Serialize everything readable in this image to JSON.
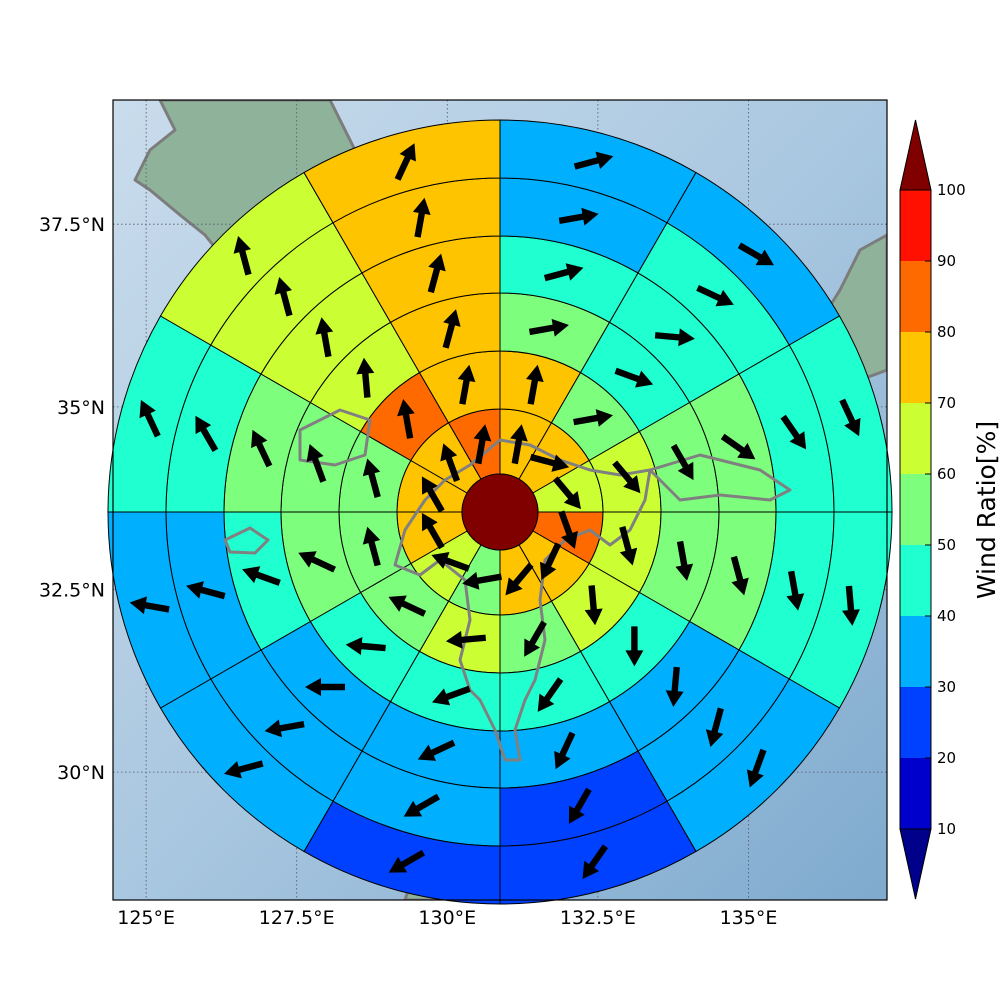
{
  "chart_data": {
    "type": "heatmap",
    "projection": "polar-sector map (typhoon-centered wind ratio)",
    "x_ticks": [
      "125°E",
      "127.5°E",
      "130°E",
      "132.5°E",
      "135°E"
    ],
    "x_tick_values": [
      125,
      127.5,
      130,
      132.5,
      135
    ],
    "y_ticks": [
      "30°N",
      "32.5°N",
      "35°N",
      "37.5°N"
    ],
    "y_tick_values": [
      30,
      32.5,
      35,
      37.5
    ],
    "lon_range": [
      124.45,
      137.3
    ],
    "lat_range": [
      28.25,
      39.2
    ],
    "grid": true,
    "center_value": 100,
    "sector_order": "clockwise from north, 12 sectors of 30°",
    "rings": [
      {
        "ring": 1,
        "values": [
          72,
          78,
          62,
          85,
          72,
          72,
          52,
          62,
          72,
          72,
          72,
          85
        ],
        "wind_dir_deg": [
          10,
          105,
          140,
          160,
          205,
          220,
          260,
          290,
          330,
          330,
          340,
          10
        ]
      },
      {
        "ring": 2,
        "values": [
          72,
          58,
          62,
          62,
          62,
          55,
          68,
          55,
          55,
          55,
          85,
          72
        ],
        "wind_dir_deg": [
          10,
          80,
          140,
          165,
          175,
          210,
          265,
          295,
          345,
          345,
          350,
          10
        ]
      },
      {
        "ring": 3,
        "values": [
          55,
          45,
          55,
          55,
          45,
          45,
          45,
          45,
          55,
          55,
          62,
          72
        ],
        "wind_dir_deg": [
          80,
          110,
          150,
          170,
          180,
          215,
          250,
          275,
          295,
          340,
          355,
          15
        ]
      },
      {
        "ring": 4,
        "values": [
          45,
          45,
          55,
          55,
          35,
          35,
          35,
          35,
          45,
          55,
          62,
          72
        ],
        "wind_dir_deg": [
          75,
          95,
          125,
          165,
          185,
          205,
          245,
          270,
          290,
          335,
          350,
          15
        ]
      },
      {
        "ring": 5,
        "values": [
          35,
          45,
          45,
          45,
          35,
          25,
          35,
          35,
          35,
          45,
          62,
          72
        ],
        "wind_dir_deg": [
          80,
          115,
          145,
          170,
          195,
          210,
          240,
          260,
          285,
          330,
          345,
          10
        ]
      },
      {
        "ring": 6,
        "values": [
          35,
          35,
          45,
          45,
          35,
          25,
          25,
          35,
          35,
          45,
          62,
          72
        ],
        "wind_dir_deg": [
          75,
          120,
          155,
          175,
          200,
          215,
          240,
          255,
          280,
          335,
          345,
          25
        ]
      }
    ],
    "colorbar": {
      "label": "Wind Ratio[%]",
      "ticks": [
        10,
        20,
        30,
        40,
        50,
        60,
        70,
        80,
        90,
        100
      ],
      "levels": [
        10,
        20,
        30,
        40,
        50,
        60,
        70,
        80,
        90,
        100
      ],
      "colors": [
        "#0000cd",
        "#0040ff",
        "#00b0ff",
        "#20ffd0",
        "#7dff7d",
        "#ccff33",
        "#ffc400",
        "#ff6a00",
        "#ff1000"
      ],
      "under_color": "#00008b",
      "over_color": "#800000",
      "extend": "both"
    }
  }
}
